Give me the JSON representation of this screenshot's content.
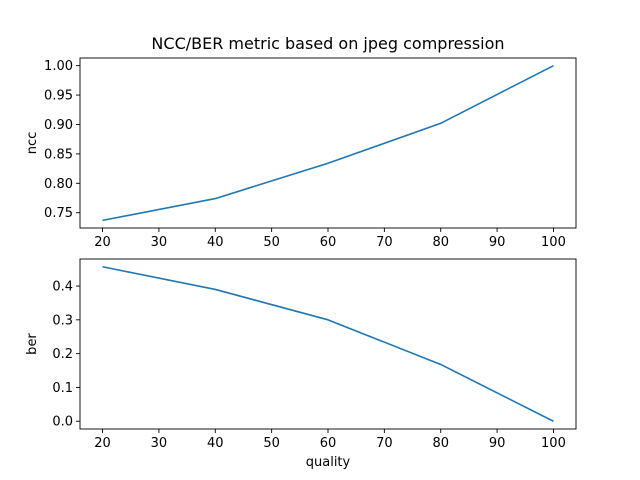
{
  "chart_data": {
    "title": "NCC/BER metric based on jpeg compression",
    "line_color": "#1f77b4",
    "panels": [
      {
        "type": "line",
        "xlabel": "",
        "ylabel": "ncc",
        "x": [
          20,
          40,
          60,
          80,
          100
        ],
        "y": [
          0.737,
          0.774,
          0.834,
          0.902,
          1.0
        ],
        "xlim": [
          16,
          104
        ],
        "ylim": [
          0.724,
          1.013
        ],
        "xticks": [
          20,
          30,
          40,
          50,
          60,
          70,
          80,
          90,
          100
        ],
        "yticks": [
          0.75,
          0.8,
          0.85,
          0.9,
          0.95,
          1.0
        ],
        "ytick_decimals": 2,
        "grid": false
      },
      {
        "type": "line",
        "xlabel": "quality",
        "ylabel": "ber",
        "x": [
          20,
          40,
          60,
          80,
          100
        ],
        "y": [
          0.457,
          0.39,
          0.3,
          0.168,
          0.0
        ],
        "xlim": [
          16,
          104
        ],
        "ylim": [
          -0.023,
          0.48
        ],
        "xticks": [
          20,
          30,
          40,
          50,
          60,
          70,
          80,
          90,
          100
        ],
        "yticks": [
          0.0,
          0.1,
          0.2,
          0.3,
          0.4
        ],
        "ytick_decimals": 1,
        "grid": false
      }
    ]
  }
}
